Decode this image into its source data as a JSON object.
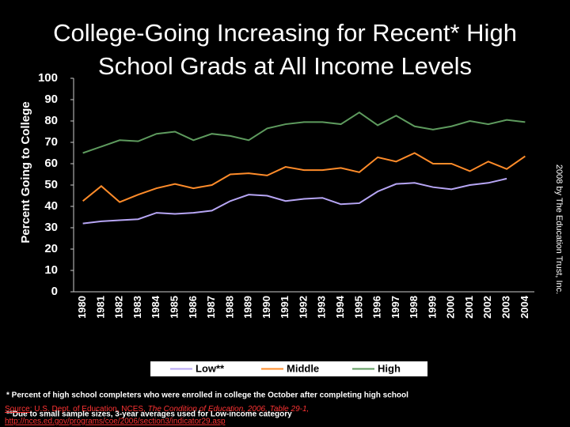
{
  "chart_data": {
    "type": "line",
    "title_lines": [
      "College-Going Increasing for Recent* High",
      "School Grads at All Income Levels"
    ],
    "y_label": "Percent Going to College",
    "categories": [
      "1980",
      "1981",
      "1982",
      "1983",
      "1984",
      "1985",
      "1986",
      "1987",
      "1988",
      "1989",
      "1990",
      "1991",
      "1992",
      "1993",
      "1994",
      "1995",
      "1996",
      "1997",
      "1998",
      "1999",
      "2000",
      "2001",
      "2002",
      "2003",
      "2004"
    ],
    "series": [
      {
        "name": "Low**",
        "color": "#b7a6f5",
        "values": [
          32,
          33,
          33.5,
          34,
          37,
          36.5,
          37,
          38,
          42.5,
          45.5,
          45,
          42.5,
          43.5,
          44,
          41,
          41.5,
          47,
          50.5,
          51,
          49,
          48,
          50,
          51,
          53,
          null
        ]
      },
      {
        "name": "Middle",
        "color": "#ff8c2a",
        "values": [
          42.5,
          49.5,
          42,
          45.5,
          48.5,
          50.5,
          48.5,
          50,
          55,
          55.5,
          54.5,
          58.5,
          57,
          57,
          58,
          56,
          63,
          61,
          65,
          60,
          60,
          56.5,
          61,
          57.5,
          63.5
        ]
      },
      {
        "name": "High",
        "color": "#5e9b5e",
        "values": [
          65,
          68,
          71,
          70.5,
          74,
          75,
          71,
          74,
          73,
          71,
          76.5,
          78.5,
          79.5,
          79.5,
          78.5,
          84,
          78,
          82.5,
          77.5,
          76,
          77.5,
          80,
          78.5,
          80.5,
          79.5
        ]
      }
    ],
    "ylim": [
      0,
      100
    ],
    "yticks": [
      0,
      10,
      20,
      30,
      40,
      50,
      60,
      70,
      80,
      90,
      100
    ],
    "grid": false,
    "footnotes": [
      "* Percent of high school completers who were enrolled in college the October after completing high school",
      "**Due to small sample sizes, 3-year averages used for Low-income category"
    ],
    "source": {
      "label": "Source",
      "text": ": U.S. Dept. of Education, NCES, ",
      "publication": "The Condition of Education, 2006, Table 29-1,",
      "url": "http://nces.ed.gov/programs/coe/2006/section3/indicator29.asp"
    },
    "copyright": "2008 by The Education Trust, Inc."
  }
}
